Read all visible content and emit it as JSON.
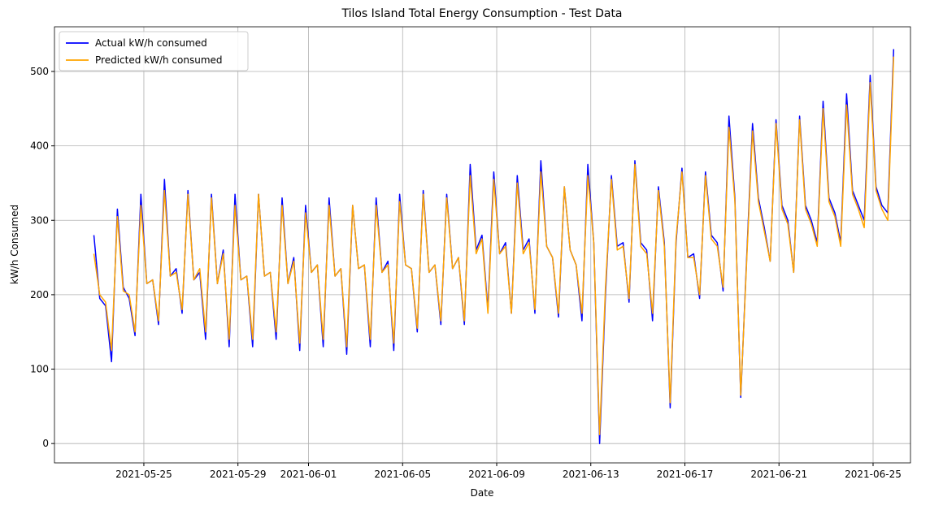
{
  "chart_data": {
    "type": "line",
    "title": "Tilos Island Total Energy Consumption - Test Data",
    "x_label": "Date",
    "y_label": "kW/h Consumed",
    "x": [
      "2021-05-22T21:00",
      "2021-05-23T03:00",
      "2021-05-23T09:00",
      "2021-05-23T15:00",
      "2021-05-23T21:00",
      "2021-05-24T03:00",
      "2021-05-24T09:00",
      "2021-05-24T15:00",
      "2021-05-24T21:00",
      "2021-05-25T03:00",
      "2021-05-25T09:00",
      "2021-05-25T15:00",
      "2021-05-25T21:00",
      "2021-05-26T03:00",
      "2021-05-26T09:00",
      "2021-05-26T15:00",
      "2021-05-26T21:00",
      "2021-05-27T03:00",
      "2021-05-27T09:00",
      "2021-05-27T15:00",
      "2021-05-27T21:00",
      "2021-05-28T03:00",
      "2021-05-28T09:00",
      "2021-05-28T15:00",
      "2021-05-28T21:00",
      "2021-05-29T03:00",
      "2021-05-29T09:00",
      "2021-05-29T15:00",
      "2021-05-29T21:00",
      "2021-05-30T03:00",
      "2021-05-30T09:00",
      "2021-05-30T15:00",
      "2021-05-30T21:00",
      "2021-05-31T03:00",
      "2021-05-31T09:00",
      "2021-05-31T15:00",
      "2021-05-31T21:00",
      "2021-06-01T03:00",
      "2021-06-01T09:00",
      "2021-06-01T15:00",
      "2021-06-01T21:00",
      "2021-06-02T03:00",
      "2021-06-02T09:00",
      "2021-06-02T15:00",
      "2021-06-02T21:00",
      "2021-06-03T03:00",
      "2021-06-03T09:00",
      "2021-06-03T15:00",
      "2021-06-03T21:00",
      "2021-06-04T03:00",
      "2021-06-04T09:00",
      "2021-06-04T15:00",
      "2021-06-04T21:00",
      "2021-06-05T03:00",
      "2021-06-05T09:00",
      "2021-06-05T15:00",
      "2021-06-05T21:00",
      "2021-06-06T03:00",
      "2021-06-06T09:00",
      "2021-06-06T15:00",
      "2021-06-06T21:00",
      "2021-06-07T03:00",
      "2021-06-07T09:00",
      "2021-06-07T15:00",
      "2021-06-07T21:00",
      "2021-06-08T03:00",
      "2021-06-08T09:00",
      "2021-06-08T15:00",
      "2021-06-08T21:00",
      "2021-06-09T03:00",
      "2021-06-09T09:00",
      "2021-06-09T15:00",
      "2021-06-09T21:00",
      "2021-06-10T03:00",
      "2021-06-10T09:00",
      "2021-06-10T15:00",
      "2021-06-10T21:00",
      "2021-06-11T03:00",
      "2021-06-11T09:00",
      "2021-06-11T15:00",
      "2021-06-11T21:00",
      "2021-06-12T03:00",
      "2021-06-12T09:00",
      "2021-06-12T15:00",
      "2021-06-12T21:00",
      "2021-06-13T03:00",
      "2021-06-13T09:00",
      "2021-06-13T15:00",
      "2021-06-13T21:00",
      "2021-06-14T03:00",
      "2021-06-14T09:00",
      "2021-06-14T15:00",
      "2021-06-14T21:00",
      "2021-06-15T03:00",
      "2021-06-15T09:00",
      "2021-06-15T15:00",
      "2021-06-15T21:00",
      "2021-06-16T03:00",
      "2021-06-16T09:00",
      "2021-06-16T15:00",
      "2021-06-16T21:00",
      "2021-06-17T03:00",
      "2021-06-17T09:00",
      "2021-06-17T15:00",
      "2021-06-17T21:00",
      "2021-06-18T03:00",
      "2021-06-18T09:00",
      "2021-06-18T15:00",
      "2021-06-18T21:00",
      "2021-06-19T03:00",
      "2021-06-19T09:00",
      "2021-06-19T15:00",
      "2021-06-19T21:00",
      "2021-06-20T03:00",
      "2021-06-20T09:00",
      "2021-06-20T15:00",
      "2021-06-20T21:00",
      "2021-06-21T03:00",
      "2021-06-21T09:00",
      "2021-06-21T15:00",
      "2021-06-21T21:00",
      "2021-06-22T03:00",
      "2021-06-22T09:00",
      "2021-06-22T15:00",
      "2021-06-22T21:00",
      "2021-06-23T03:00",
      "2021-06-23T09:00",
      "2021-06-23T15:00",
      "2021-06-23T21:00",
      "2021-06-24T03:00",
      "2021-06-24T09:00",
      "2021-06-24T15:00",
      "2021-06-24T21:00",
      "2021-06-25T03:00",
      "2021-06-25T09:00",
      "2021-06-25T15:00",
      "2021-06-25T21:00"
    ],
    "series": [
      {
        "name": "Actual kW/h consumed",
        "color": "#0000ff",
        "values": [
          280,
          195,
          185,
          110,
          315,
          210,
          195,
          145,
          335,
          215,
          220,
          160,
          355,
          225,
          235,
          175,
          340,
          220,
          230,
          140,
          335,
          215,
          260,
          130,
          335,
          220,
          225,
          130,
          335,
          225,
          230,
          140,
          330,
          215,
          250,
          125,
          320,
          230,
          240,
          130,
          330,
          225,
          235,
          120,
          320,
          235,
          240,
          130,
          330,
          230,
          245,
          125,
          335,
          240,
          235,
          150,
          340,
          230,
          240,
          160,
          335,
          235,
          250,
          160,
          375,
          260,
          280,
          180,
          365,
          255,
          270,
          175,
          360,
          260,
          275,
          175,
          380,
          265,
          250,
          170,
          345,
          260,
          240,
          165,
          375,
          270,
          0,
          200,
          360,
          265,
          270,
          190,
          380,
          270,
          260,
          165,
          345,
          270,
          48,
          270,
          370,
          250,
          255,
          195,
          365,
          280,
          270,
          205,
          440,
          330,
          62,
          250,
          430,
          330,
          290,
          245,
          435,
          320,
          300,
          230,
          440,
          320,
          300,
          270,
          460,
          330,
          310,
          270,
          470,
          340,
          320,
          300,
          495,
          345,
          320,
          310,
          530
        ]
      },
      {
        "name": "Predicted kW/h consumed",
        "color": "#ffa500",
        "values": [
          255,
          200,
          190,
          125,
          305,
          205,
          200,
          150,
          320,
          215,
          220,
          165,
          340,
          225,
          230,
          180,
          335,
          220,
          235,
          150,
          330,
          215,
          255,
          140,
          320,
          220,
          225,
          140,
          335,
          225,
          230,
          150,
          320,
          215,
          245,
          135,
          310,
          230,
          240,
          140,
          320,
          225,
          235,
          130,
          320,
          235,
          240,
          140,
          320,
          230,
          240,
          135,
          325,
          240,
          235,
          155,
          335,
          230,
          240,
          165,
          330,
          235,
          250,
          165,
          360,
          255,
          275,
          175,
          355,
          255,
          265,
          175,
          350,
          255,
          270,
          180,
          365,
          265,
          250,
          175,
          345,
          260,
          240,
          175,
          360,
          270,
          12,
          210,
          355,
          260,
          265,
          195,
          375,
          265,
          255,
          175,
          340,
          265,
          55,
          275,
          365,
          250,
          250,
          200,
          360,
          275,
          265,
          210,
          425,
          325,
          65,
          245,
          420,
          325,
          285,
          245,
          430,
          315,
          295,
          230,
          435,
          315,
          295,
          265,
          450,
          325,
          305,
          265,
          455,
          335,
          315,
          290,
          485,
          340,
          315,
          300,
          520
        ]
      }
    ],
    "xlim": [
      "2021-05-21T04:48",
      "2021-06-26T14:10"
    ],
    "xticks": [
      "2021-05-25",
      "2021-05-29",
      "2021-06-01",
      "2021-06-05",
      "2021-06-09",
      "2021-06-13",
      "2021-06-17",
      "2021-06-21",
      "2021-06-25"
    ],
    "ylim": [
      -26,
      560
    ],
    "yticks": [
      0,
      100,
      200,
      300,
      400,
      500
    ],
    "grid": true,
    "legend": "upper-left"
  }
}
